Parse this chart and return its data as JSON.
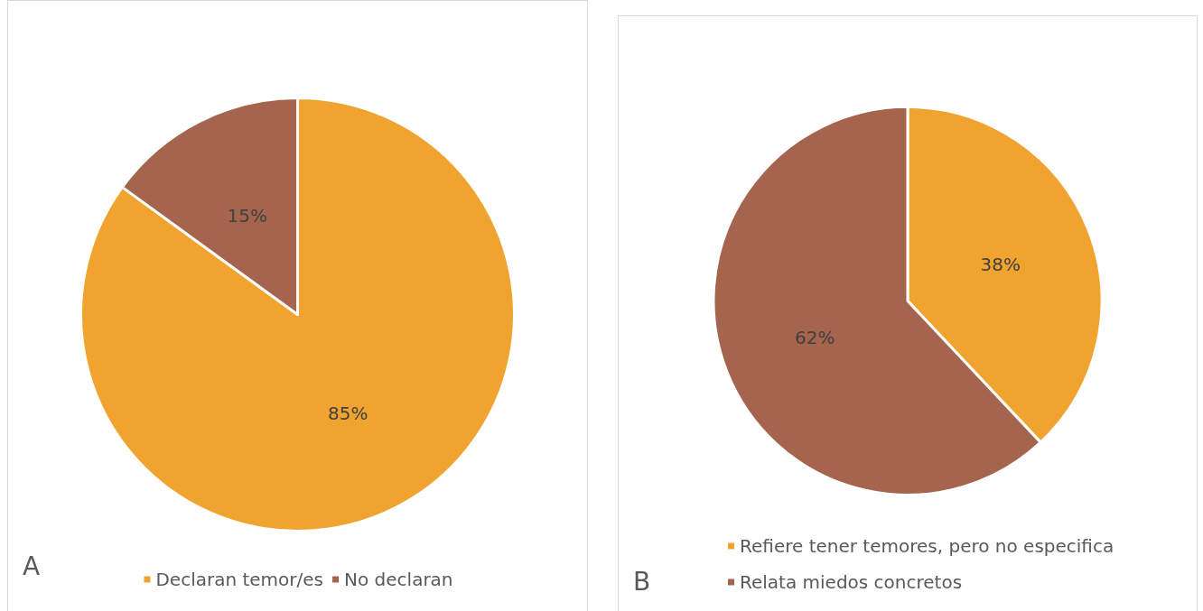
{
  "chart_data": [
    {
      "type": "pie",
      "categories": [
        "Declaran temor/es",
        "No declaran"
      ],
      "values": [
        85,
        15
      ],
      "colors": [
        "#f0a42f",
        "#a5644d"
      ],
      "value_labels": [
        "85%",
        "15%"
      ],
      "legend": "bottom",
      "annotations": [
        "A"
      ]
    },
    {
      "type": "pie",
      "categories": [
        "Refiere tener temores, pero no especifica",
        "Relata miedos concretos"
      ],
      "values": [
        38,
        62
      ],
      "colors": [
        "#f0a42f",
        "#a5644d"
      ],
      "value_labels": [
        "38%",
        "62%"
      ],
      "legend": "bottom left",
      "annotations": [
        "B"
      ]
    }
  ]
}
